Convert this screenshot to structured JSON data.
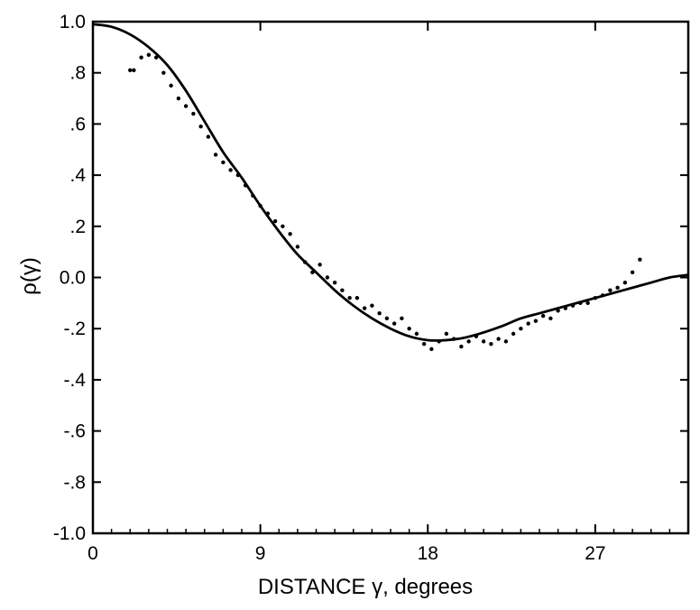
{
  "chart_data": {
    "type": "line",
    "xlabel": "DISTANCE γ, degrees",
    "ylabel": "ρ(γ)",
    "xlim": [
      0,
      32
    ],
    "ylim": [
      -1.0,
      1.0
    ],
    "x_ticks": [
      0,
      9,
      18,
      27
    ],
    "x_tick_labels": [
      "0",
      "9",
      "18",
      "27"
    ],
    "y_ticks": [
      1.0,
      0.8,
      0.6,
      0.4,
      0.2,
      0.0,
      -0.2,
      -0.4,
      -0.6,
      -0.8,
      -1.0
    ],
    "y_tick_labels": [
      "1.0",
      ".8",
      ".6",
      ".4",
      ".2",
      "0.0",
      "-.2",
      "-.4",
      "-.6",
      "-.8",
      "-1.0"
    ],
    "grid": false,
    "series": [
      {
        "kind": "line",
        "x": [
          0,
          1,
          2,
          3,
          4,
          5,
          6,
          7,
          8,
          9,
          10,
          11,
          12,
          13,
          14,
          15,
          16,
          17,
          18,
          19,
          20,
          21,
          22,
          23,
          24,
          25,
          26,
          27,
          28,
          29,
          30,
          31,
          32
        ],
        "y": [
          0.99,
          0.98,
          0.95,
          0.9,
          0.83,
          0.73,
          0.61,
          0.49,
          0.39,
          0.28,
          0.18,
          0.09,
          0.02,
          -0.05,
          -0.11,
          -0.16,
          -0.2,
          -0.23,
          -0.245,
          -0.245,
          -0.235,
          -0.215,
          -0.19,
          -0.16,
          -0.14,
          -0.12,
          -0.1,
          -0.08,
          -0.06,
          -0.04,
          -0.02,
          0.0,
          0.01
        ]
      },
      {
        "kind": "scatter",
        "x": [
          2.0,
          2.2,
          2.6,
          3.0,
          3.4,
          3.8,
          4.2,
          4.6,
          5.0,
          5.4,
          5.8,
          6.2,
          6.6,
          7.0,
          7.4,
          7.8,
          8.2,
          8.6,
          9.0,
          9.4,
          9.8,
          10.2,
          10.6,
          11.0,
          11.4,
          11.8,
          12.2,
          12.6,
          13.0,
          13.4,
          13.8,
          14.2,
          14.6,
          15.0,
          15.4,
          15.8,
          16.2,
          16.6,
          17.0,
          17.4,
          17.8,
          18.2,
          18.6,
          19.0,
          19.4,
          19.8,
          20.2,
          20.6,
          21.0,
          21.4,
          21.8,
          22.2,
          22.6,
          23.0,
          23.4,
          23.8,
          24.2,
          24.6,
          25.0,
          25.4,
          25.8,
          26.2,
          26.6,
          27.0,
          27.4,
          27.8,
          28.2,
          28.6,
          29.0,
          29.4
        ],
        "y": [
          0.81,
          0.81,
          0.86,
          0.87,
          0.86,
          0.8,
          0.75,
          0.7,
          0.67,
          0.64,
          0.59,
          0.55,
          0.48,
          0.45,
          0.42,
          0.4,
          0.36,
          0.32,
          0.28,
          0.25,
          0.22,
          0.2,
          0.17,
          0.12,
          0.06,
          0.02,
          0.05,
          0.0,
          -0.02,
          -0.05,
          -0.08,
          -0.08,
          -0.12,
          -0.11,
          -0.14,
          -0.16,
          -0.18,
          -0.16,
          -0.2,
          -0.22,
          -0.26,
          -0.28,
          -0.25,
          -0.22,
          -0.24,
          -0.27,
          -0.25,
          -0.23,
          -0.25,
          -0.26,
          -0.24,
          -0.25,
          -0.22,
          -0.2,
          -0.18,
          -0.17,
          -0.15,
          -0.16,
          -0.13,
          -0.12,
          -0.11,
          -0.1,
          -0.1,
          -0.08,
          -0.07,
          -0.05,
          -0.04,
          -0.02,
          0.02,
          0.07
        ]
      }
    ]
  }
}
